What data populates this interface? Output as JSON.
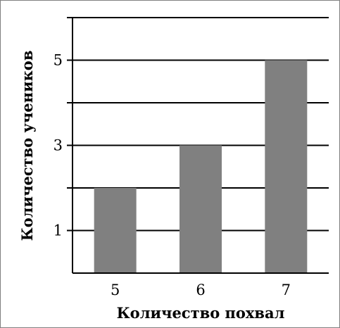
{
  "chart_data": {
    "type": "bar",
    "categories": [
      "5",
      "6",
      "7"
    ],
    "values": [
      2,
      3,
      5
    ],
    "xlabel": "Количество похвал",
    "ylabel": "Количество учеников",
    "ylim": [
      0,
      6
    ],
    "yticks": [
      1,
      3,
      5
    ],
    "grid": true,
    "bar_color": "#808080"
  }
}
